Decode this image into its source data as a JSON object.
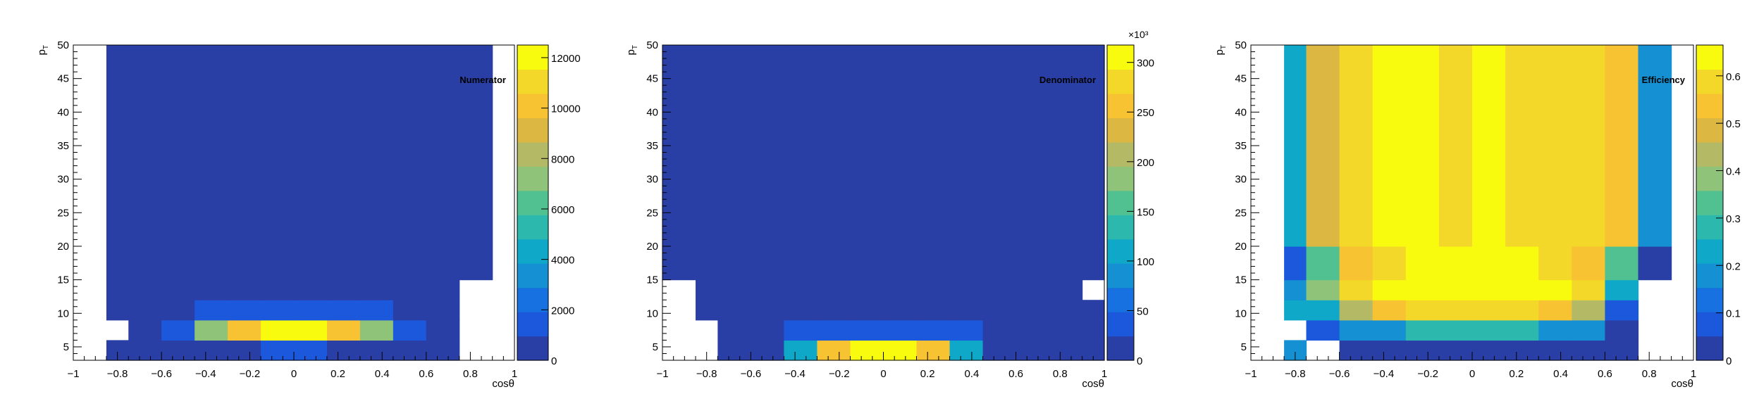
{
  "palette": [
    "#2a3fa6",
    "#1c58dc",
    "#1771e0",
    "#1490d3",
    "#0fa8c8",
    "#2db8ad",
    "#52c191",
    "#8fc37a",
    "#b4b965",
    "#dcb742",
    "#f8c332",
    "#f4d829",
    "#f8fb0e"
  ],
  "chart_data": [
    {
      "type": "heatmap",
      "title": "Numerator",
      "xlabel": "cosθ",
      "ylabel": "p_T",
      "xlim": [
        -1,
        1
      ],
      "ylim": [
        3,
        50
      ],
      "x_edges": [
        -1,
        -0.85,
        -0.75,
        -0.6,
        -0.45,
        -0.3,
        -0.15,
        0,
        0.15,
        0.3,
        0.45,
        0.6,
        0.75,
        0.9,
        1
      ],
      "y_edges": [
        3,
        6,
        9,
        12,
        15,
        20,
        50
      ],
      "zmin": 0,
      "zmax": 12500,
      "values": [
        [
          null,
          0,
          0,
          0,
          0,
          500,
          1500,
          1500,
          500,
          0,
          0,
          0,
          null,
          null
        ],
        [
          null,
          null,
          0,
          1500,
          7500,
          10500,
          12500,
          12500,
          10500,
          7500,
          1500,
          0,
          null,
          null
        ],
        [
          null,
          0,
          0,
          800,
          1500,
          1800,
          1800,
          1800,
          1800,
          1500,
          800,
          0,
          null,
          null
        ],
        [
          null,
          0,
          0,
          0,
          0,
          0,
          0,
          0,
          0,
          0,
          0,
          0,
          null,
          null
        ],
        [
          null,
          0,
          0,
          0,
          0,
          0,
          0,
          0,
          0,
          0,
          0,
          0,
          0,
          null
        ],
        [
          null,
          0,
          0,
          0,
          0,
          0,
          0,
          0,
          0,
          0,
          0,
          0,
          0,
          null
        ]
      ],
      "xticks": [
        "−1",
        "−0.8",
        "−0.6",
        "−0.4",
        "−0.2",
        "0",
        "0.2",
        "0.4",
        "0.6",
        "0.8",
        "1"
      ],
      "yticks": [
        "5",
        "10",
        "15",
        "20",
        "25",
        "30",
        "35",
        "40",
        "45",
        "50"
      ],
      "colorbar_ticks": [
        "0",
        "2000",
        "4000",
        "6000",
        "8000",
        "10000",
        "12000"
      ],
      "colorbar_exponent": ""
    },
    {
      "type": "heatmap",
      "title": "Denominator",
      "xlabel": "cosθ",
      "ylabel": "p_T",
      "xlim": [
        -1,
        1
      ],
      "ylim": [
        3,
        50
      ],
      "x_edges": [
        -1,
        -0.85,
        -0.75,
        -0.6,
        -0.45,
        -0.3,
        -0.15,
        0,
        0.15,
        0.3,
        0.45,
        0.6,
        0.75,
        0.9,
        1
      ],
      "y_edges": [
        3,
        6,
        9,
        12,
        15,
        20,
        50
      ],
      "zmin": 0,
      "zmax": 340,
      "values": [
        [
          null,
          null,
          0,
          0,
          130,
          270,
          340,
          340,
          270,
          130,
          0,
          0,
          0,
          0
        ],
        [
          null,
          null,
          0,
          0,
          40,
          40,
          40,
          40,
          40,
          40,
          0,
          0,
          0,
          0
        ],
        [
          null,
          0,
          0,
          0,
          0,
          0,
          0,
          0,
          0,
          0,
          0,
          0,
          0,
          0
        ],
        [
          null,
          0,
          0,
          0,
          0,
          0,
          0,
          0,
          0,
          0,
          0,
          0,
          0,
          null
        ],
        [
          0,
          0,
          0,
          0,
          0,
          0,
          0,
          0,
          0,
          0,
          0,
          0,
          0,
          0
        ],
        [
          0,
          0,
          0,
          0,
          0,
          0,
          0,
          0,
          0,
          0,
          0,
          0,
          0,
          0
        ]
      ],
      "xticks": [
        "−1",
        "−0.8",
        "−0.6",
        "−0.4",
        "−0.2",
        "0",
        "0.2",
        "0.4",
        "0.6",
        "0.8",
        "1"
      ],
      "yticks": [
        "5",
        "10",
        "15",
        "20",
        "25",
        "30",
        "35",
        "40",
        "45",
        "50"
      ],
      "colorbar_ticks": [
        "0",
        "50",
        "100",
        "150",
        "200",
        "250",
        "300"
      ],
      "colorbar_exponent": "×10³"
    },
    {
      "type": "heatmap",
      "title": "Efficiency",
      "xlabel": "cosθ",
      "ylabel": "p_T",
      "xlim": [
        -1,
        1
      ],
      "ylim": [
        3,
        50
      ],
      "x_edges": [
        -1,
        -0.85,
        -0.75,
        -0.6,
        -0.45,
        -0.3,
        -0.15,
        0,
        0.15,
        0.3,
        0.45,
        0.6,
        0.75,
        0.9,
        1
      ],
      "y_edges": [
        3,
        6,
        9,
        12,
        15,
        20,
        50
      ],
      "zmin": 0,
      "zmax": 0.7,
      "values": [
        [
          null,
          0.2,
          null,
          0.03,
          0.03,
          0.03,
          0.03,
          0.03,
          0.03,
          0.03,
          0.03,
          0.03,
          null,
          null
        ],
        [
          null,
          null,
          0.08,
          0.2,
          0.2,
          0.28,
          0.28,
          0.28,
          0.28,
          0.2,
          0.2,
          0.03,
          null,
          null
        ],
        [
          null,
          0.25,
          0.25,
          0.45,
          0.58,
          0.62,
          0.62,
          0.62,
          0.62,
          0.58,
          0.45,
          0.1,
          null,
          null
        ],
        [
          null,
          0.2,
          0.4,
          0.6,
          0.67,
          0.67,
          0.67,
          0.67,
          0.67,
          0.67,
          0.6,
          0.23,
          null,
          null
        ],
        [
          null,
          0.1,
          0.37,
          0.55,
          0.6,
          0.67,
          0.67,
          0.67,
          0.67,
          0.62,
          0.55,
          0.37,
          0.03,
          null
        ],
        [
          null,
          0.23,
          0.5,
          0.62,
          0.67,
          0.67,
          0.62,
          0.67,
          0.62,
          0.62,
          0.62,
          0.55,
          0.18,
          null
        ]
      ],
      "xticks": [
        "−1",
        "−0.8",
        "−0.6",
        "−0.4",
        "−0.2",
        "0",
        "0.2",
        "0.4",
        "0.6",
        "0.8",
        "1"
      ],
      "yticks": [
        "5",
        "10",
        "15",
        "20",
        "25",
        "30",
        "35",
        "40",
        "45",
        "50"
      ],
      "colorbar_ticks": [
        "0",
        "0.1",
        "0.2",
        "0.3",
        "0.4",
        "0.5",
        "0.6"
      ],
      "colorbar_exponent": ""
    }
  ]
}
